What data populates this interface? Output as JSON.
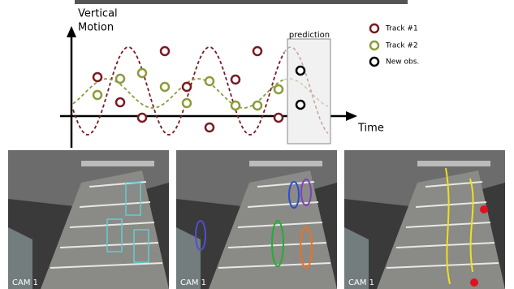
{
  "diagram": {
    "y_axis_label": [
      "Vertical",
      "Motion"
    ],
    "x_axis_label": "Time",
    "prediction_label": "prediction",
    "legend": [
      "Track #1",
      "Track #2",
      "New obs."
    ]
  },
  "panels": [
    {
      "label": "CAM 1"
    },
    {
      "label": "CAM 1"
    },
    {
      "label": "CAM 1"
    }
  ]
}
